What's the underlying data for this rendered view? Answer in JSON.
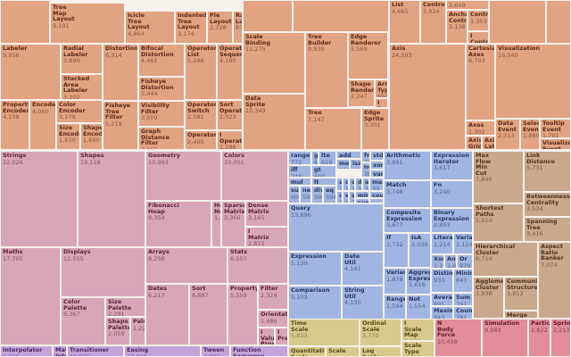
{
  "chart_data": {
    "type": "treemap",
    "title": "",
    "groups": [
      {
        "name": "vis",
        "color": "#e2a382",
        "text": "#5b2a17",
        "tiles": [
          [
            "",
            ""
          ],
          [
            "Tree\nMap\nLayout",
            "9,191"
          ],
          [
            "Icicle\nTree\nLayout",
            "4,864"
          ],
          [
            "Indented\nTree\nLayout",
            "3,174"
          ],
          [
            "Pie\nLayout",
            "2,728"
          ],
          [
            "Ra\nLa",
            "87"
          ],
          [
            "",
            ""
          ],
          [
            "",
            ""
          ],
          [
            "List",
            "4,665"
          ],
          [
            "Control",
            "3,824"
          ],
          [
            "",
            "2,649"
          ],
          [
            "Anchor\nControl",
            "2,138"
          ],
          [
            "Control",
            "1,353"
          ],
          [
            "I\nControl",
            ""
          ],
          [
            "",
            ""
          ],
          [
            "",
            ""
          ],
          [
            "Labeler",
            "9,956"
          ],
          [
            "Radial\nLabeler",
            "3,899"
          ],
          [
            "Stacked\nArea\nLabeler",
            "3,202"
          ],
          [
            "Distortion",
            "6,314"
          ],
          [
            "Bifocal\nDistortion",
            "4,461"
          ],
          [
            "Fisheye\nDistortion",
            "3,444"
          ],
          [
            "Operator\nList",
            "5,248"
          ],
          [
            "Operator\nSequence",
            "4,190"
          ],
          [
            "Scale\nBinding",
            "11,275"
          ],
          [
            "Data\nSprite",
            "10,349"
          ],
          [
            "Tree\nBuilder",
            "9,930"
          ],
          [
            "Tree",
            "7,147"
          ],
          [
            "Edge\nRenderer",
            "5,569"
          ],
          [
            "Shape\nRenderer",
            "2,247"
          ],
          [
            "Arrow\nType",
            "698"
          ],
          [
            "I\nRender",
            ""
          ],
          [
            "Edge\nSprite",
            "3,301"
          ],
          [
            "Axis",
            "24,593"
          ],
          [
            "Cartesian\nAxes",
            "6,703"
          ],
          [
            "Axes",
            "1,302"
          ],
          [
            "Axis\nGrid\nLine",
            ""
          ],
          [
            "Axis\nLabel",
            "536"
          ],
          [
            "Visualization",
            "16,540"
          ],
          [
            "Data\nEvent",
            "2,313"
          ],
          [
            "Selection\nEvent",
            "1,880"
          ],
          [
            "Tooltip\nEvent",
            "1,701"
          ],
          [
            "Visualization\nEvent",
            ""
          ],
          [
            "Property\nEncoder",
            "4,138"
          ],
          [
            "Encoder",
            "4,060"
          ],
          [
            "Color\nEncoder",
            "3,179"
          ],
          [
            "Size\nEncoder",
            "1,830"
          ],
          [
            "Shape\nEncoder",
            "1,690"
          ],
          [
            "Fisheye\nTree\nFilter",
            "5,219"
          ],
          [
            "Visibility\nFilter",
            "3,509"
          ],
          [
            "Graph\nDistance\nFilter",
            "3,165"
          ],
          [
            "Operator\nSwitch",
            "2,581"
          ],
          [
            "Operator",
            "2,490"
          ],
          [
            "Sort\nOperator",
            "2,023"
          ],
          [
            "I\nOperator",
            "1,286"
          ]
        ]
      },
      {
        "name": "util",
        "color": "#d8a6b9",
        "text": "#5a2436",
        "tiles": [
          [
            "Strings",
            "22,026"
          ],
          [
            "Shapes",
            "19,118"
          ],
          [
            "Geometry",
            "10,993"
          ],
          [
            "Colors",
            "10,001"
          ],
          [
            "Fibonacci\nHeap",
            "9,354"
          ],
          [
            "Heap\nNode",
            "1,2"
          ],
          [
            "Sparse\nMatrix",
            "3,366"
          ],
          [
            "Dense\nMatrix",
            "3,165"
          ],
          [
            "I\nMatrix",
            "2,815"
          ],
          [
            "Maths",
            "17,705"
          ],
          [
            "Displays",
            "12,555"
          ],
          [
            "Color\nPalette",
            "6,367"
          ],
          [
            "Size\nPalette",
            "2,291"
          ],
          [
            "Shape\nPalette",
            "2,059"
          ],
          [
            "Palette",
            "1,229"
          ],
          [
            "Arrays",
            "8,258"
          ],
          [
            "Stats",
            "6,557"
          ],
          [
            "Dates",
            "6,217"
          ],
          [
            "Sort",
            "6,887"
          ],
          [
            "Property",
            "5,559"
          ],
          [
            "Filter",
            "2,324"
          ],
          [
            "Orientation",
            "1,486"
          ],
          [
            "I\nValue\nProxy",
            ""
          ],
          [
            "I\nPredicate",
            ""
          ]
        ]
      },
      {
        "name": "animate",
        "color": "#c6a2dc",
        "text": "#4a2460",
        "tiles": [
          [
            "Interpolator",
            "8,746"
          ],
          [
            "Math\nInterpolator",
            ""
          ],
          [
            "Transitioner",
            "19,975"
          ],
          [
            "Easing",
            "17,010"
          ],
          [
            "Tween",
            "6,006"
          ],
          [
            "Function\nSequence",
            ""
          ]
        ]
      },
      {
        "name": "query",
        "color": "#a0b5e1",
        "text": "#26365e",
        "tiles": [
          [
            "range",
            "772"
          ],
          [
            "gt",
            "62"
          ],
          [
            "lte",
            "619"
          ],
          [
            "iff",
            "748"
          ],
          [
            "gt",
            "603"
          ],
          [
            "add",
            ""
          ],
          [
            "mod",
            "591"
          ],
          [
            "isa",
            "461"
          ],
          [
            "fn",
            "460"
          ],
          [
            "stddev",
            ""
          ],
          [
            "xor",
            ""
          ],
          [
            "not",
            "386"
          ],
          [
            "variance",
            ""
          ],
          [
            "mul",
            ""
          ],
          [
            "lt",
            ""
          ],
          [
            "sub",
            "600"
          ],
          [
            "neq",
            "599"
          ],
          [
            "div",
            "595"
          ],
          [
            "eq",
            "594"
          ],
          [
            "and",
            "33"
          ],
          [
            "or",
            "32"
          ],
          [
            "orderby",
            "30"
          ],
          [
            "distinct",
            "39"
          ],
          [
            "avg",
            "38"
          ],
          [
            "max",
            "39"
          ],
          [
            "update",
            "30"
          ],
          [
            "where",
            "29"
          ],
          [
            "select",
            "29"
          ],
          [
            "min",
            ""
          ],
          [
            "count",
            ""
          ],
          [
            "sum",
            ""
          ],
          [
            "_",
            ""
          ],
          [
            "Query",
            "13,896"
          ],
          [
            "Expression",
            "5,130"
          ],
          [
            "Date\nUtil",
            "4,141"
          ],
          [
            "Comparison",
            "5,103"
          ],
          [
            "String\nUtil",
            "4,130"
          ],
          [
            "Arithmetic",
            "3,891"
          ],
          [
            "Expression\nIterator",
            "3,617"
          ],
          [
            "Match",
            "3,748"
          ],
          [
            "Fn",
            "3,240"
          ],
          [
            "Composite\nExpression",
            "3,677"
          ],
          [
            "Binary\nExpression",
            "2,893"
          ],
          [
            "If",
            "2,732"
          ],
          [
            "IsA",
            "2,039"
          ],
          [
            "Literal",
            "1,214"
          ],
          [
            "Variable",
            "1,124"
          ],
          [
            "Xor",
            "1,101"
          ],
          [
            "And",
            "1,02"
          ],
          [
            "Or",
            "970"
          ],
          [
            "Variance",
            "1,876"
          ],
          [
            "Aggregate\nExpression",
            "1,616"
          ],
          [
            "Distinct",
            "933"
          ],
          [
            "Minimum",
            "843"
          ],
          [
            "Range",
            "1,594"
          ],
          [
            "Not",
            "1,554"
          ],
          [
            "Average",
            "891"
          ],
          [
            "Sum",
            "791"
          ],
          [
            "Maximum",
            "843"
          ],
          [
            "Count",
            "781"
          ]
        ]
      },
      {
        "name": "analytics",
        "color": "#caa88b",
        "text": "#4f3320",
        "tiles": [
          [
            "Max\nFlow\nMin\nCut",
            "7,840"
          ],
          [
            "Link\nDistance",
            "5,731"
          ],
          [
            "Betweenness\nCentrality",
            "3,534"
          ],
          [
            "Shortest\nPaths",
            "5,914"
          ],
          [
            "Spanning\nTree",
            "3,416"
          ],
          [
            "Hierarchical\nCluster",
            "6,714"
          ],
          [
            "Aspect\nRatio\nBanker",
            "7,074"
          ],
          [
            "Agglomerative\nCluster",
            "3,938"
          ],
          [
            "Community\nStructure",
            "3,812"
          ],
          [
            "Merge",
            ""
          ]
        ]
      },
      {
        "name": "scale",
        "color": "#dac98c",
        "text": "#57481a",
        "tiles": [
          [
            "Time\nScale",
            "5,833"
          ],
          [
            "Ordinal\nScale",
            "3,770"
          ],
          [
            "I\nScale\nMap",
            "2,105"
          ],
          [
            "Scale\nType",
            "1,821"
          ],
          [
            "Quantitative\nScale",
            ""
          ],
          [
            "Scale",
            "1,3"
          ],
          [
            "Log\nScale",
            ""
          ]
        ]
      },
      {
        "name": "physics",
        "color": "#e28d99",
        "text": "#5e1c28",
        "tiles": [
          [
            "N\nBody\nForce",
            "10,498"
          ],
          [
            "Simulation",
            "9,983"
          ],
          [
            "Particle",
            "2,822"
          ],
          [
            "Spring",
            "2,213"
          ]
        ]
      }
    ]
  }
}
